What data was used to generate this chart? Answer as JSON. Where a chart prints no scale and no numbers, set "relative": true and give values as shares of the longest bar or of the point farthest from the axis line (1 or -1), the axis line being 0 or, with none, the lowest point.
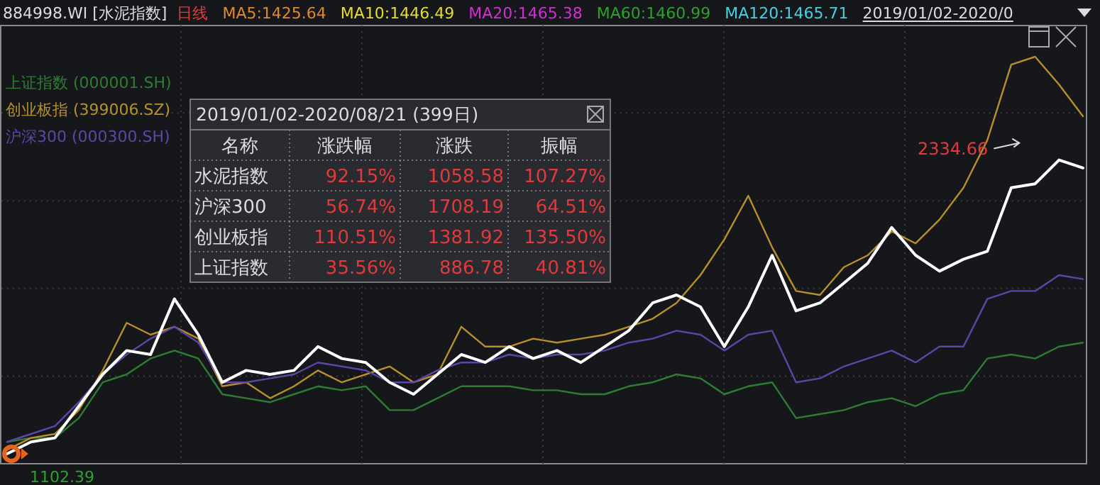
{
  "chart_data": {
    "type": "line",
    "relative": true,
    "title": "884998.WI [水泥指数]",
    "grid": true,
    "legend": "top left",
    "categories": [
      null,
      null,
      null,
      null,
      null,
      null,
      null,
      null,
      null,
      null,
      null,
      null,
      null,
      null,
      null,
      null,
      null,
      null,
      null,
      null,
      null,
      null,
      null,
      null,
      null,
      null,
      null,
      null,
      null,
      null,
      null,
      null,
      null,
      null,
      null,
      null,
      null,
      null,
      null,
      null,
      null,
      null,
      null,
      null,
      null,
      null
    ],
    "series": [
      {
        "name": "上证指数 (000001.SH)",
        "color": "#2e7d32",
        "values": [
          0.03,
          0.04,
          0.04,
          0.09,
          0.18,
          0.2,
          0.24,
          0.26,
          0.24,
          0.15,
          0.14,
          0.13,
          0.15,
          0.17,
          0.16,
          0.17,
          0.11,
          0.11,
          0.14,
          0.17,
          0.17,
          0.17,
          0.16,
          0.16,
          0.15,
          0.15,
          0.17,
          0.18,
          0.2,
          0.19,
          0.15,
          0.17,
          0.18,
          0.09,
          0.1,
          0.11,
          0.13,
          0.14,
          0.12,
          0.15,
          0.16,
          0.24,
          0.25,
          0.24,
          0.27,
          0.28
        ]
      },
      {
        "name": "创业板指 (399006.SZ)",
        "color": "#b8902a",
        "values": [
          0.01,
          0.04,
          0.05,
          0.11,
          0.21,
          0.33,
          0.3,
          0.32,
          0.29,
          0.17,
          0.18,
          0.14,
          0.17,
          0.21,
          0.18,
          0.2,
          0.22,
          0.18,
          0.2,
          0.32,
          0.27,
          0.27,
          0.29,
          0.28,
          0.29,
          0.3,
          0.32,
          0.34,
          0.38,
          0.45,
          0.54,
          0.65,
          0.52,
          0.41,
          0.4,
          0.47,
          0.5,
          0.56,
          0.53,
          0.59,
          0.67,
          0.79,
          0.98,
          1,
          0.93,
          0.85
        ]
      },
      {
        "name": "沪深300 (000300.SH)",
        "color": "#5e45a8",
        "values": [
          0.03,
          0.05,
          0.07,
          0.13,
          0.2,
          0.25,
          0.29,
          0.32,
          0.28,
          0.18,
          0.18,
          0.19,
          0.2,
          0.23,
          0.22,
          0.21,
          0.18,
          0.18,
          0.21,
          0.23,
          0.23,
          0.25,
          0.24,
          0.25,
          0.25,
          0.26,
          0.28,
          0.29,
          0.31,
          0.3,
          0.26,
          0.3,
          0.31,
          0.18,
          0.19,
          0.22,
          0.24,
          0.26,
          0.23,
          0.27,
          0.27,
          0.39,
          0.41,
          0.41,
          0.45,
          0.44
        ]
      },
      {
        "color": "#ffffff",
        "values": [
          0,
          0.03,
          0.04,
          0.12,
          0.2,
          0.26,
          0.25,
          0.39,
          0.3,
          0.18,
          0.21,
          0.2,
          0.21,
          0.27,
          0.24,
          0.23,
          0.18,
          0.15,
          0.2,
          0.25,
          0.23,
          0.27,
          0.24,
          0.26,
          0.23,
          0.27,
          0.31,
          0.38,
          0.4,
          0.37,
          0.27,
          0.37,
          0.5,
          0.36,
          0.38,
          0.43,
          0.48,
          0.57,
          0.5,
          0.46,
          0.49,
          0.51,
          0.67,
          0.68,
          0.74,
          0.72
        ]
      }
    ],
    "annotations": [
      "2334.66",
      "1102.39",
      "日线",
      "MA5:1425.64",
      "MA10:1446.49",
      "MA20:1465.38",
      "MA60:1460.99",
      "MA120:1465.71",
      "2019/01/02-2020/0",
      "2019/01/02-2020/08/21 (399日)",
      "名称",
      "涨跌幅",
      "涨跌",
      "振幅",
      "水泥指数",
      "92.15%",
      "1058.58",
      "107.27%",
      "沪深300",
      "56.74%",
      "1708.19",
      "64.51%",
      "创业板指",
      "110.51%",
      "1381.92",
      "135.50%",
      "上证指数",
      "35.56%",
      "886.78",
      "40.81%"
    ]
  }
}
